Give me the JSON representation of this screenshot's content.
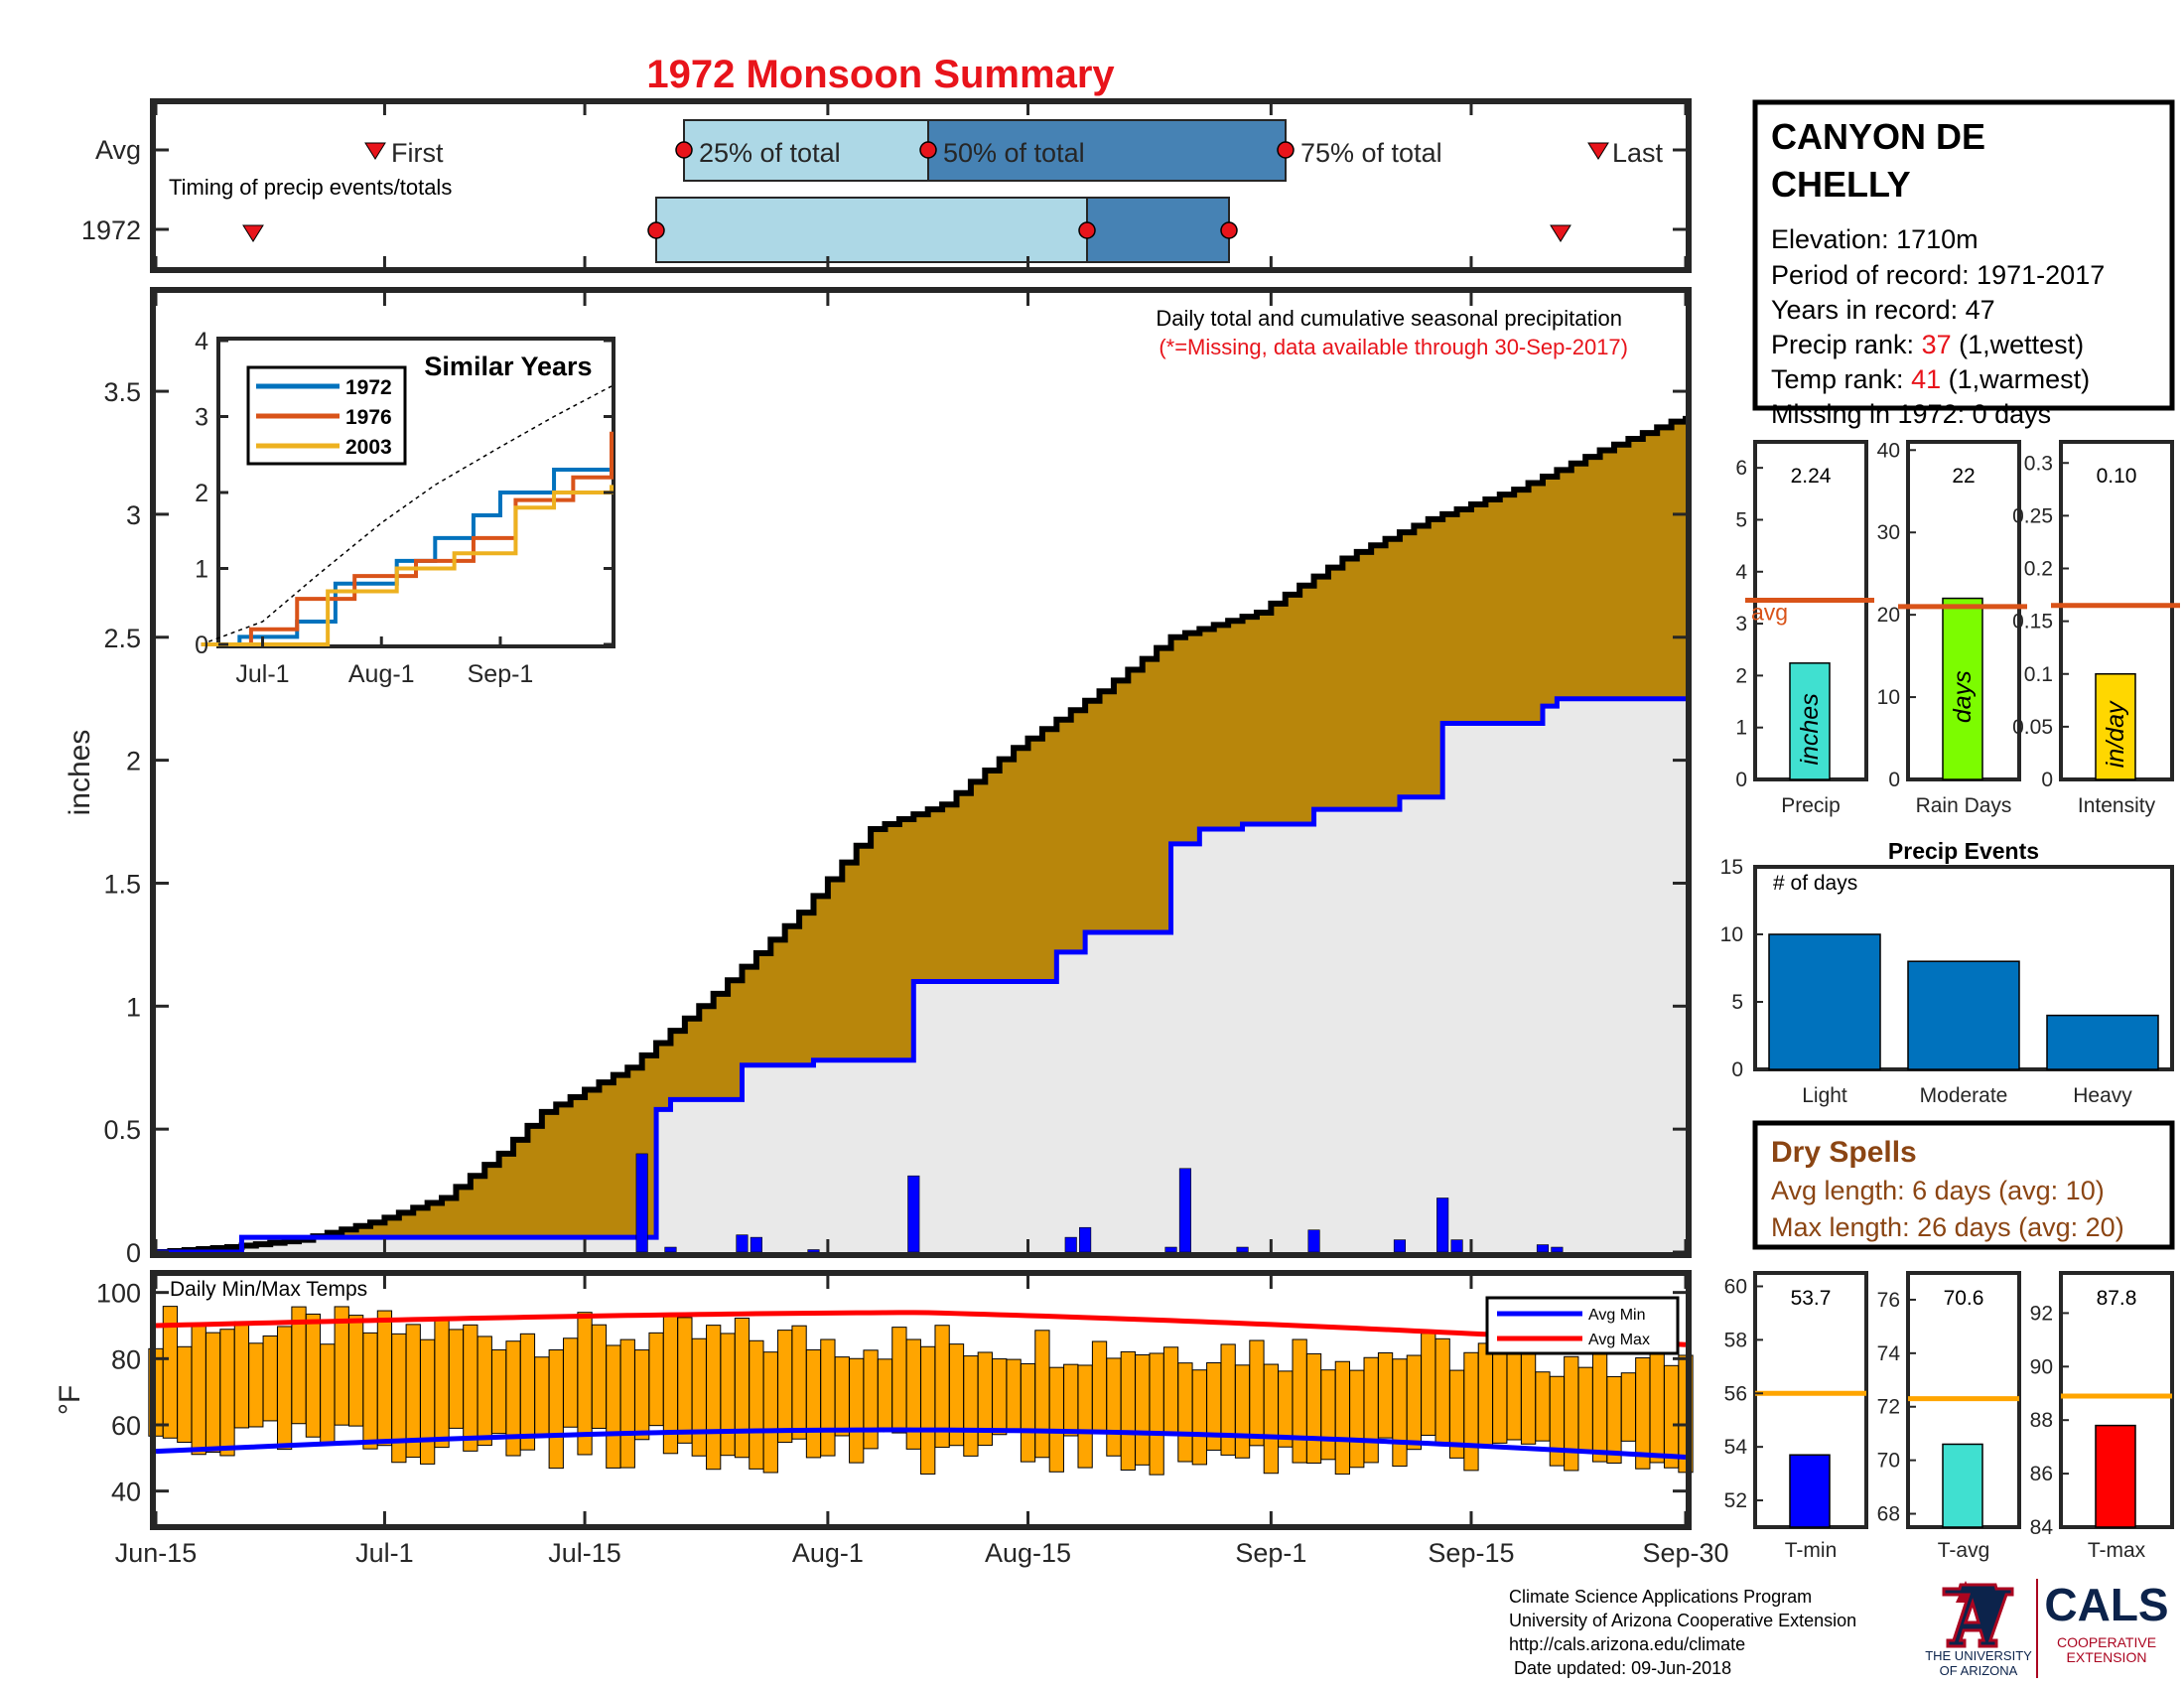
{
  "title": "1972 Monsoon Summary",
  "year": "1972",
  "x_axis": {
    "ticks": [
      "Jun-15",
      "Jul-1",
      "Jul-15",
      "Aug-1",
      "Aug-15",
      "Sep-1",
      "Sep-15",
      "Sep-30"
    ]
  },
  "colors": {
    "title": "#e8141b",
    "cumulative_fill": "#b8860b",
    "avg_fill": "#e9e9e9",
    "daily_bar": "#0000ff",
    "temp_bar": "#ffa500",
    "avg_min": "#0000ff",
    "avg_max": "#ff0000",
    "accent_orange": "#d95319",
    "dry_spell_text": "#8b4513"
  },
  "timing": {
    "row_labels": [
      "Avg",
      "1972"
    ],
    "caption": "Timing of precip events/totals",
    "first_label": "First",
    "last_label": "Last",
    "pct25_label": "25% of total",
    "pct50_label": "50% of total",
    "pct75_label": "75% of total"
  },
  "station": {
    "name_line1": "CANYON DE",
    "name_line2": "CHELLY",
    "elevation": "Elevation: 1710m",
    "period": "Period of record: 1971-2017",
    "years": "Years in record: 47",
    "precip_rank_label": "Precip rank: ",
    "precip_rank_value": "37",
    "precip_rank_note": " (1,wettest)",
    "temp_rank_label": "Temp rank: ",
    "temp_rank_value": "41",
    "temp_rank_note": " (1,warmest)",
    "missing": "Missing in 1972: 0 days"
  },
  "precip_panel": {
    "caption": "Daily total and cumulative seasonal precipitation",
    "missing_note": "(*=Missing, data available through 30-Sep-2017)",
    "ylabel": "inches",
    "yticks": [
      "0",
      "0.5",
      "1",
      "1.5",
      "2",
      "2.5",
      "3",
      "3.5"
    ]
  },
  "inset": {
    "title": "Similar Years",
    "legend": [
      "1972",
      "1976",
      "2003"
    ],
    "series_colors": [
      "#0072bd",
      "#d95319",
      "#edb120"
    ],
    "yticks": [
      "0",
      "1",
      "2",
      "3",
      "4"
    ],
    "xticks": [
      "Jul-1",
      "Aug-1",
      "Sep-1"
    ]
  },
  "small_bars": [
    {
      "label": "Precip",
      "value_text": "2.24",
      "bar_text": "inches",
      "avg_text": "avg",
      "yticks": [
        "0",
        "1",
        "2",
        "3",
        "4",
        "5",
        "6"
      ]
    },
    {
      "label": "Rain Days",
      "value_text": "22",
      "bar_text": "days",
      "yticks": [
        "0",
        "10",
        "20",
        "30",
        "40"
      ]
    },
    {
      "label": "Intensity",
      "value_text": "0.10",
      "bar_text": "in/day",
      "yticks": [
        "0",
        "0.05",
        "0.1",
        "0.15",
        "0.2",
        "0.25",
        "0.3"
      ]
    }
  ],
  "events": {
    "title": "Precip Events",
    "ylabel_note": "# of days",
    "yticks": [
      "0",
      "5",
      "10",
      "15"
    ],
    "categories": [
      "Light",
      "Moderate",
      "Heavy"
    ]
  },
  "dry_spells": {
    "title": "Dry Spells",
    "avg_line": "Avg length: 6 days (avg: 10)",
    "max_line": "Max length: 26 days (avg: 20)"
  },
  "temp_panel": {
    "title": "Daily Min/Max Temps",
    "ylabel": "°F",
    "yticks": [
      "40",
      "60",
      "80",
      "100"
    ],
    "legend": [
      "Avg Min",
      "Avg Max"
    ]
  },
  "temp_bars": [
    {
      "label": "T-min",
      "value_text": "53.7",
      "yticks": [
        "52",
        "54",
        "56",
        "58",
        "60"
      ]
    },
    {
      "label": "T-avg",
      "value_text": "70.6",
      "yticks": [
        "68",
        "70",
        "72",
        "74",
        "76"
      ]
    },
    {
      "label": "T-max",
      "value_text": "87.8",
      "yticks": [
        "84",
        "86",
        "88",
        "90",
        "92"
      ]
    }
  ],
  "footer": {
    "lines": [
      "Climate Science Applications Program",
      "University of Arizona Cooperative Extension",
      "http://cals.arizona.edu/climate",
      " Date updated: 09-Jun-2018"
    ],
    "ua_line1": "THE UNIVERSITY",
    "ua_line2": "OF ARIZONA",
    "cals": "CALS",
    "cals_sub1": "COOPERATIVE",
    "cals_sub2": "EXTENSION"
  },
  "chart_data": {
    "type": "area",
    "x_start": "Jun-15",
    "x_end": "Sep-30",
    "ylim": [
      0,
      3.9
    ],
    "cumulative_1972": [
      {
        "x": "Jun-15",
        "y": 0.0
      },
      {
        "x": "Jun-20",
        "y": 0.02
      },
      {
        "x": "Jun-25",
        "y": 0.05
      },
      {
        "x": "Jun-30",
        "y": 0.12
      },
      {
        "x": "Jul-5",
        "y": 0.22
      },
      {
        "x": "Jul-9",
        "y": 0.4
      },
      {
        "x": "Jul-12",
        "y": 0.57
      },
      {
        "x": "Jul-18",
        "y": 0.75
      },
      {
        "x": "Jul-24",
        "y": 1.05
      },
      {
        "x": "Jul-30",
        "y": 1.38
      },
      {
        "x": "Aug-4",
        "y": 1.72
      },
      {
        "x": "Aug-9",
        "y": 1.82
      },
      {
        "x": "Aug-14",
        "y": 2.05
      },
      {
        "x": "Aug-20",
        "y": 2.28
      },
      {
        "x": "Aug-25",
        "y": 2.5
      },
      {
        "x": "Aug-31",
        "y": 2.6
      },
      {
        "x": "Sep-6",
        "y": 2.82
      },
      {
        "x": "Sep-12",
        "y": 2.98
      },
      {
        "x": "Sep-18",
        "y": 3.1
      },
      {
        "x": "Sep-24",
        "y": 3.26
      },
      {
        "x": "Sep-30",
        "y": 3.4
      }
    ],
    "cumulative_avg": [
      {
        "x": "Jun-15",
        "y": 0.0
      },
      {
        "x": "Jun-21",
        "y": 0.06
      },
      {
        "x": "Jul-19",
        "y": 0.06
      },
      {
        "x": "Jul-20",
        "y": 0.58
      },
      {
        "x": "Jul-21",
        "y": 0.62
      },
      {
        "x": "Jul-26",
        "y": 0.76
      },
      {
        "x": "Jul-31",
        "y": 0.78
      },
      {
        "x": "Aug-7",
        "y": 1.1
      },
      {
        "x": "Aug-17",
        "y": 1.22
      },
      {
        "x": "Aug-19",
        "y": 1.3
      },
      {
        "x": "Aug-25",
        "y": 1.66
      },
      {
        "x": "Aug-27",
        "y": 1.72
      },
      {
        "x": "Aug-30",
        "y": 1.74
      },
      {
        "x": "Sep-4",
        "y": 1.8
      },
      {
        "x": "Sep-10",
        "y": 1.85
      },
      {
        "x": "Sep-13",
        "y": 2.15
      },
      {
        "x": "Sep-20",
        "y": 2.22
      },
      {
        "x": "Sep-21",
        "y": 2.25
      },
      {
        "x": "Sep-30",
        "y": 2.25
      }
    ],
    "daily_precip": [
      {
        "x": "Jul-19",
        "y": 0.4
      },
      {
        "x": "Jul-21",
        "y": 0.02
      },
      {
        "x": "Jul-26",
        "y": 0.07
      },
      {
        "x": "Jul-27",
        "y": 0.06
      },
      {
        "x": "Jul-31",
        "y": 0.01
      },
      {
        "x": "Aug-7",
        "y": 0.31
      },
      {
        "x": "Aug-18",
        "y": 0.06
      },
      {
        "x": "Aug-19",
        "y": 0.1
      },
      {
        "x": "Aug-25",
        "y": 0.02
      },
      {
        "x": "Aug-26",
        "y": 0.34
      },
      {
        "x": "Aug-30",
        "y": 0.02
      },
      {
        "x": "Sep-4",
        "y": 0.09
      },
      {
        "x": "Sep-10",
        "y": 0.05
      },
      {
        "x": "Sep-13",
        "y": 0.22
      },
      {
        "x": "Sep-14",
        "y": 0.05
      },
      {
        "x": "Sep-20",
        "y": 0.03
      },
      {
        "x": "Sep-21",
        "y": 0.02
      }
    ],
    "similar_years": [
      {
        "name": "1972",
        "points": [
          {
            "x": "Jun-15",
            "y": 0
          },
          {
            "x": "Jun-25",
            "y": 0.1
          },
          {
            "x": "Jul-10",
            "y": 0.3
          },
          {
            "x": "Jul-20",
            "y": 0.8
          },
          {
            "x": "Aug-5",
            "y": 1.1
          },
          {
            "x": "Aug-15",
            "y": 1.4
          },
          {
            "x": "Aug-25",
            "y": 1.7
          },
          {
            "x": "Sep-1",
            "y": 2.0
          },
          {
            "x": "Sep-15",
            "y": 2.3
          },
          {
            "x": "Sep-30",
            "y": 2.25
          }
        ]
      },
      {
        "name": "1976",
        "points": [
          {
            "x": "Jun-15",
            "y": 0
          },
          {
            "x": "Jun-28",
            "y": 0.2
          },
          {
            "x": "Jul-10",
            "y": 0.6
          },
          {
            "x": "Jul-25",
            "y": 0.9
          },
          {
            "x": "Aug-10",
            "y": 1.1
          },
          {
            "x": "Aug-25",
            "y": 1.4
          },
          {
            "x": "Sep-5",
            "y": 1.9
          },
          {
            "x": "Sep-20",
            "y": 2.2
          },
          {
            "x": "Sep-30",
            "y": 2.8
          }
        ]
      },
      {
        "name": "2003",
        "points": [
          {
            "x": "Jun-15",
            "y": 0
          },
          {
            "x": "Jul-10",
            "y": 0.0
          },
          {
            "x": "Jul-18",
            "y": 0.7
          },
          {
            "x": "Aug-5",
            "y": 1.0
          },
          {
            "x": "Aug-20",
            "y": 1.2
          },
          {
            "x": "Sep-5",
            "y": 1.8
          },
          {
            "x": "Sep-15",
            "y": 2.0
          },
          {
            "x": "Sep-30",
            "y": 2.1
          }
        ]
      }
    ],
    "similar_avg": [
      {
        "x": "Jun-15",
        "y": 0
      },
      {
        "x": "Jul-1",
        "y": 0.3
      },
      {
        "x": "Jul-15",
        "y": 0.9
      },
      {
        "x": "Aug-1",
        "y": 1.6
      },
      {
        "x": "Aug-15",
        "y": 2.1
      },
      {
        "x": "Sep-1",
        "y": 2.6
      },
      {
        "x": "Sep-15",
        "y": 3.0
      },
      {
        "x": "Sep-30",
        "y": 3.4
      }
    ],
    "summary": {
      "precip_inches": 2.24,
      "precip_avg": 3.45,
      "rain_days": 22,
      "rain_days_avg": 21,
      "intensity": 0.1,
      "intensity_avg": 0.165
    },
    "precip_events": {
      "categories": [
        "Light",
        "Moderate",
        "Heavy"
      ],
      "values": [
        10,
        8,
        4
      ]
    },
    "temps": {
      "ylim": [
        30,
        105
      ]
    },
    "temp_summary": {
      "t_min": 53.7,
      "t_min_avg": 56,
      "t_avg": 70.6,
      "t_avg_avg": 72.3,
      "t_max": 87.8,
      "t_max_avg": 88.9
    }
  }
}
